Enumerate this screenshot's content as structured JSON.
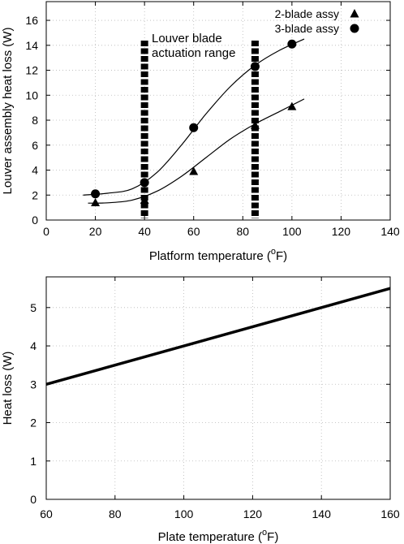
{
  "chart_data": [
    {
      "type": "scatter",
      "xlabel": "Platform temperature (",
      "xlabel_sup": "o",
      "xlabel_unit": "F)",
      "ylabel": "Louver assembly heat loss (W)",
      "xlim": [
        0,
        140
      ],
      "ylim": [
        0,
        17.5
      ],
      "xticks": [
        0,
        20,
        40,
        60,
        80,
        100,
        120,
        140
      ],
      "yticks": [
        0,
        2,
        4,
        6,
        8,
        10,
        12,
        14,
        16
      ],
      "grid": true,
      "legend_position": "top-right",
      "series": [
        {
          "name": "2-blade assy",
          "marker": "triangle",
          "x": [
            20,
            40,
            60,
            85,
            100
          ],
          "y": [
            1.4,
            1.6,
            3.9,
            7.6,
            9.1
          ],
          "fit_x": [
            17,
            25,
            35,
            45,
            55,
            65,
            75,
            85,
            95,
            105
          ],
          "fit_y": [
            1.35,
            1.38,
            1.6,
            2.3,
            3.5,
            5.0,
            6.5,
            7.7,
            8.7,
            9.7
          ]
        },
        {
          "name": "3-blade assy",
          "marker": "circle",
          "x": [
            20,
            40,
            60,
            85,
            100
          ],
          "y": [
            2.1,
            3.0,
            7.4,
            12.3,
            14.1
          ],
          "fit_x": [
            15,
            25,
            35,
            45,
            55,
            65,
            75,
            85,
            95,
            105
          ],
          "fit_y": [
            2.0,
            2.15,
            2.5,
            3.8,
            6.0,
            8.5,
            10.7,
            12.4,
            13.6,
            14.5
          ]
        }
      ],
      "actuation_lines_x": [
        40,
        85
      ],
      "annotation": [
        "Louver blade",
        "actuation range"
      ]
    },
    {
      "type": "line",
      "xlabel": "Plate temperature (",
      "xlabel_sup": "o",
      "xlabel_unit": "F)",
      "ylabel": "Heat loss (W)",
      "xlim": [
        60,
        160
      ],
      "ylim": [
        0,
        5.8
      ],
      "xticks": [
        60,
        80,
        100,
        120,
        140,
        160
      ],
      "yticks": [
        0,
        1,
        2,
        3,
        4,
        5
      ],
      "grid": true,
      "series": [
        {
          "x": [
            60,
            160
          ],
          "y": [
            3.0,
            5.5
          ]
        }
      ]
    }
  ]
}
